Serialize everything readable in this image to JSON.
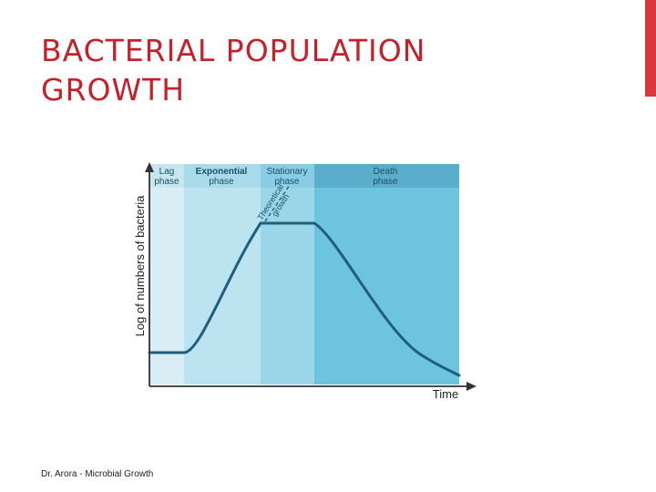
{
  "title": {
    "line1": "BACTERIAL POPULATION",
    "line2": "GROWTH"
  },
  "footer": "Dr. Arora - Microbial Growth",
  "colors": {
    "title": "#c8202a",
    "accent_bar": "#d9373b",
    "curve": "#1f5f7d",
    "lag_band": "#d8eef4",
    "exponential_band": "#bce3f0",
    "stationary_band": "#9bd5e8",
    "death_band": "#6dc4df",
    "lag_header": "#c7e6ef",
    "exponential_header": "#a9dbeb",
    "stationary_header": "#88cde3",
    "death_header": "#5aaecb"
  },
  "diagram": {
    "y_axis_label": "Log of numbers of bacteria",
    "x_axis_label": "Time",
    "phases": [
      {
        "line1": "Lag",
        "line2": "phase"
      },
      {
        "line1": "Exponential",
        "line2": "phase"
      },
      {
        "line1": "Stationary",
        "line2": "phase"
      },
      {
        "line1": "Death",
        "line2": "phase"
      }
    ],
    "theoretical_label": {
      "line1": "Theoretical",
      "line2": "growth"
    }
  }
}
